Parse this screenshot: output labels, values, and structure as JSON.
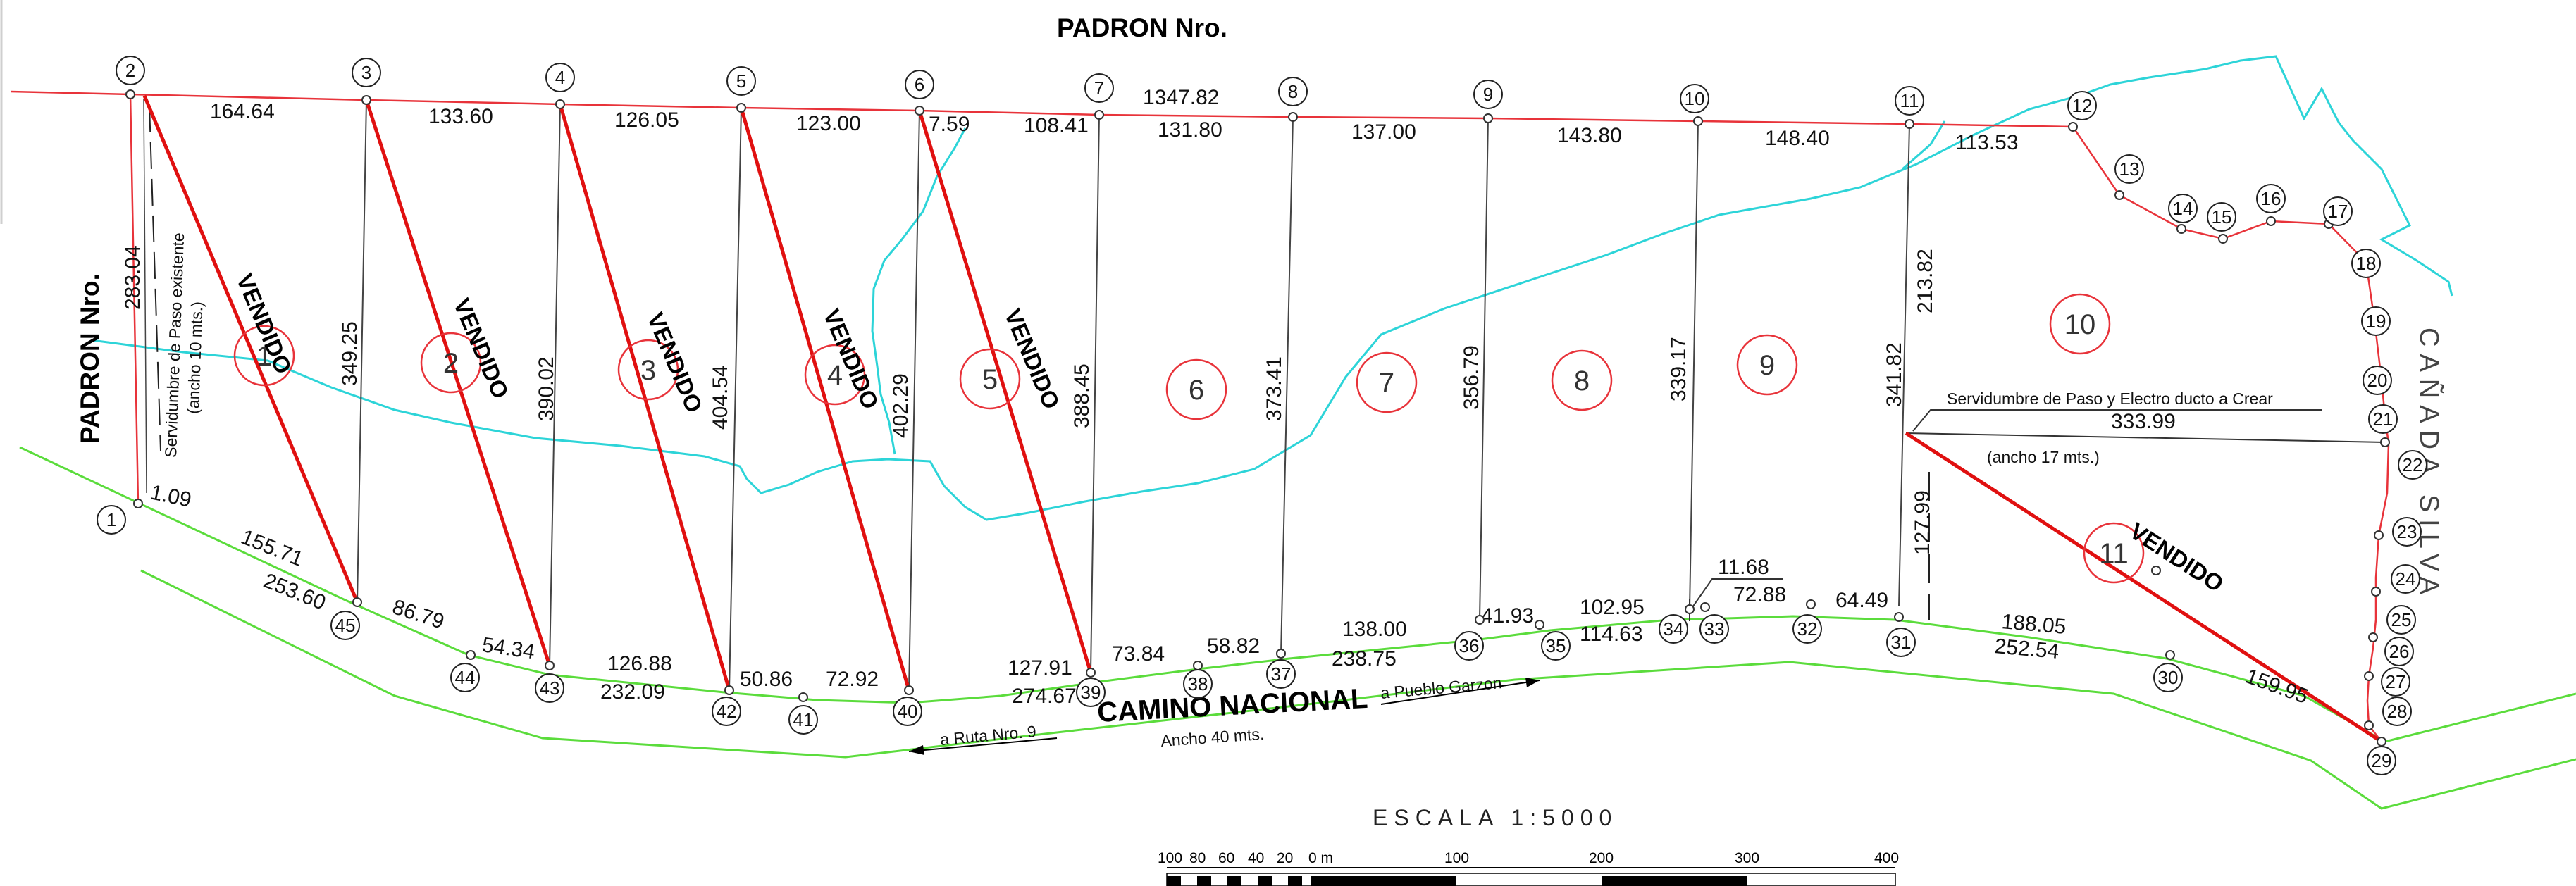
{
  "titles": {
    "padron_top": "PADRON Nro.",
    "padron_left": "PADRON Nro.",
    "canada": "CAÑADA   SILVA",
    "camino": "CAMINO NACIONAL",
    "road_width": "Ancho 40 mts.",
    "to_ruta": "a Ruta Nro. 9",
    "to_pueblo": "a Pueblo Garzon",
    "scale": "ESCALA  1:5000",
    "easement_left_1": "Servidumbre de Paso existente",
    "easement_left_2": "(ancho 10 mts.)",
    "easement_right": "Servidumbre de Paso y Electro ducto a Crear",
    "easement_right_width": "(ancho 17 mts.)",
    "sold": "VENDIDO"
  },
  "top_dims": [
    "164.64",
    "133.60",
    "126.05",
    "123.00",
    "7.59",
    "108.41",
    "1347.82",
    "131.80",
    "137.00",
    "143.80",
    "148.40",
    "113.53"
  ],
  "bottom_dims": [
    "155.71",
    "253.60",
    "86.79",
    "54.34",
    "126.88",
    "232.09",
    "50.86",
    "72.92",
    "127.91",
    "274.67",
    "73.84",
    "58.82",
    "138.00",
    "238.75",
    "41.93",
    "102.95",
    "114.63",
    "11.68",
    "72.88",
    "64.49",
    "188.05",
    "252.54",
    "159.95"
  ],
  "side_dims": [
    "283.04",
    "1.09",
    "349.25",
    "390.02",
    "404.54",
    "402.29",
    "388.45",
    "373.41",
    "356.79",
    "339.17",
    "213.82",
    "341.82",
    "333.99",
    "127.99"
  ],
  "lot_labels": [
    "1",
    "2",
    "3",
    "4",
    "5",
    "6",
    "7",
    "8",
    "9",
    "10",
    "11"
  ],
  "nodes": [
    "1",
    "2",
    "3",
    "4",
    "5",
    "6",
    "7",
    "8",
    "9",
    "10",
    "11",
    "12",
    "13",
    "14",
    "15",
    "16",
    "17",
    "18",
    "19",
    "20",
    "21",
    "22",
    "23",
    "24",
    "25",
    "26",
    "27",
    "28",
    "29",
    "30",
    "31",
    "32",
    "33",
    "34",
    "35",
    "36",
    "37",
    "38",
    "39",
    "40",
    "41",
    "42",
    "43",
    "44",
    "45"
  ],
  "scale_bar": [
    "100",
    "80",
    "60",
    "40",
    "20",
    "0 m",
    "100",
    "200",
    "300",
    "400"
  ],
  "colors": {
    "boundary": "#e8333a",
    "sold_line": "#e01010",
    "road": "#5bdc3c",
    "stream": "#2dd4d8",
    "division": "#444444"
  }
}
